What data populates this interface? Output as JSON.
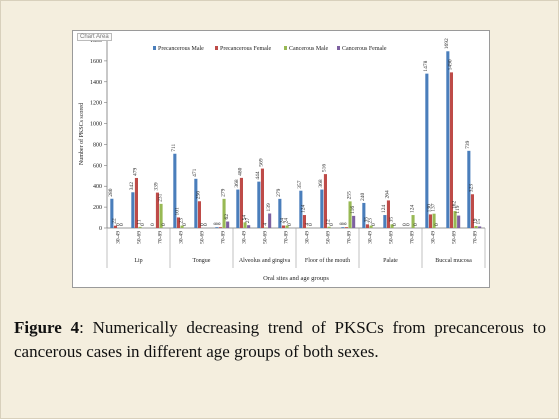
{
  "caption": {
    "label": "Figure 4",
    "text": ": Numerically decreasing trend of PKSCs from precancerous to cancerous cases in different age groups of both sexes."
  },
  "chart_area_tag": "Chart Area",
  "chart_data": {
    "type": "bar",
    "xlabel": "Oral sites and age groups",
    "ylabel": "Number of PKSCs scored",
    "ylim": [
      0,
      1800
    ],
    "yticks": [
      0,
      200,
      400,
      600,
      800,
      1000,
      1200,
      1400,
      1600,
      1800
    ],
    "grid": false,
    "legend_position": "top",
    "groups": [
      {
        "site": "Lip",
        "ages": [
          "30-49",
          "50-69",
          "70-89"
        ]
      },
      {
        "site": "Tongue",
        "ages": [
          "30-49",
          "50-69",
          "70-89"
        ]
      },
      {
        "site": "Alveolus and gingiva",
        "ages": [
          "30-49",
          "50-69",
          "70-89"
        ]
      },
      {
        "site": "Floor of the mouth",
        "ages": [
          "30-49",
          "50-69",
          "70-89"
        ]
      },
      {
        "site": "Palate",
        "ages": [
          "30-49",
          "50-69",
          "70-89"
        ]
      },
      {
        "site": "Buccal mucosa",
        "ages": [
          "30-49",
          "50-69",
          "70-89"
        ]
      }
    ],
    "series": [
      {
        "name": "Precancerous Male",
        "color": "#4a7ebb",
        "values": [
          280,
          342,
          0,
          711,
          471,
          8,
          368,
          444,
          279,
          357,
          368,
          8,
          240,
          124,
          0,
          1478,
          1692,
          739
        ]
      },
      {
        "name": "Precancerous Female",
        "color": "#be4b48",
        "values": [
          22,
          479,
          339,
          101,
          256,
          8,
          480,
          569,
          24,
          124,
          516,
          8,
          35,
          264,
          0,
          130,
          1490,
          323
        ]
      },
      {
        "name": "Cancerous Male",
        "color": "#98b954",
        "values": [
          0,
          11,
          231,
          23,
          0,
          279,
          54,
          4,
          24,
          4,
          12,
          255,
          23,
          35,
          124,
          137,
          162,
          19
        ]
      },
      {
        "name": "Cancerous Female",
        "color": "#7d60a0",
        "values": [
          0,
          0,
          0,
          0,
          0,
          62,
          27,
          139,
          0,
          0,
          0,
          116,
          0,
          0,
          0,
          0,
          119,
          15
        ]
      }
    ]
  }
}
